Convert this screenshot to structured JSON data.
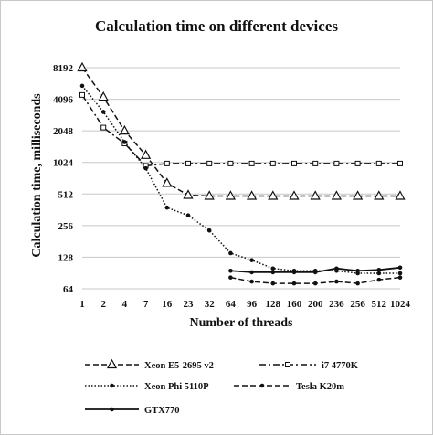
{
  "chart_data": {
    "type": "line",
    "title": "Calculation time on different devices",
    "xlabel": "Number of threads",
    "ylabel": "Calculation time, milliseconds",
    "y_scale": "log2",
    "ylim": [
      64,
      8192
    ],
    "y_ticks": [
      "64",
      "128",
      "256",
      "512",
      "1024",
      "2048",
      "4096",
      "8192"
    ],
    "y_tick_values": [
      64,
      128,
      256,
      512,
      1024,
      2048,
      4096,
      8192
    ],
    "categories": [
      "1",
      "2",
      "4",
      "7",
      "16",
      "23",
      "32",
      "64",
      "96",
      "128",
      "160",
      "200",
      "236",
      "256",
      "512",
      "1024"
    ],
    "grid": "horizontal",
    "legend_position": "bottom",
    "series": [
      {
        "name": "Xeon E5-2695 v2",
        "style": "dashed",
        "marker": "triangle",
        "values": [
          8192,
          4300,
          2048,
          1200,
          650,
          500,
          490,
          490,
          490,
          490,
          490,
          490,
          490,
          490,
          490,
          490
        ]
      },
      {
        "name": "i7 4770K",
        "style": "dashdot",
        "marker": "square",
        "values": [
          4500,
          2200,
          1550,
          950,
          1000,
          1000,
          1000,
          1000,
          1000,
          1000,
          1000,
          1000,
          1000,
          1000,
          1000,
          1000
        ]
      },
      {
        "name": "Xeon Phi 5110P",
        "style": "dotted",
        "marker": "circle",
        "values": [
          5500,
          3100,
          1600,
          900,
          380,
          320,
          230,
          140,
          120,
          100,
          95,
          95,
          95,
          90,
          90,
          90
        ]
      },
      {
        "name": "Tesla K20m",
        "style": "dashed",
        "marker": "circle",
        "values": [
          null,
          null,
          null,
          null,
          null,
          null,
          null,
          82,
          75,
          72,
          72,
          72,
          75,
          72,
          78,
          82
        ]
      },
      {
        "name": "GTX770",
        "style": "solid",
        "marker": "circle",
        "values": [
          null,
          null,
          null,
          null,
          null,
          null,
          null,
          95,
          92,
          92,
          92,
          92,
          100,
          95,
          97,
          102
        ]
      }
    ]
  }
}
